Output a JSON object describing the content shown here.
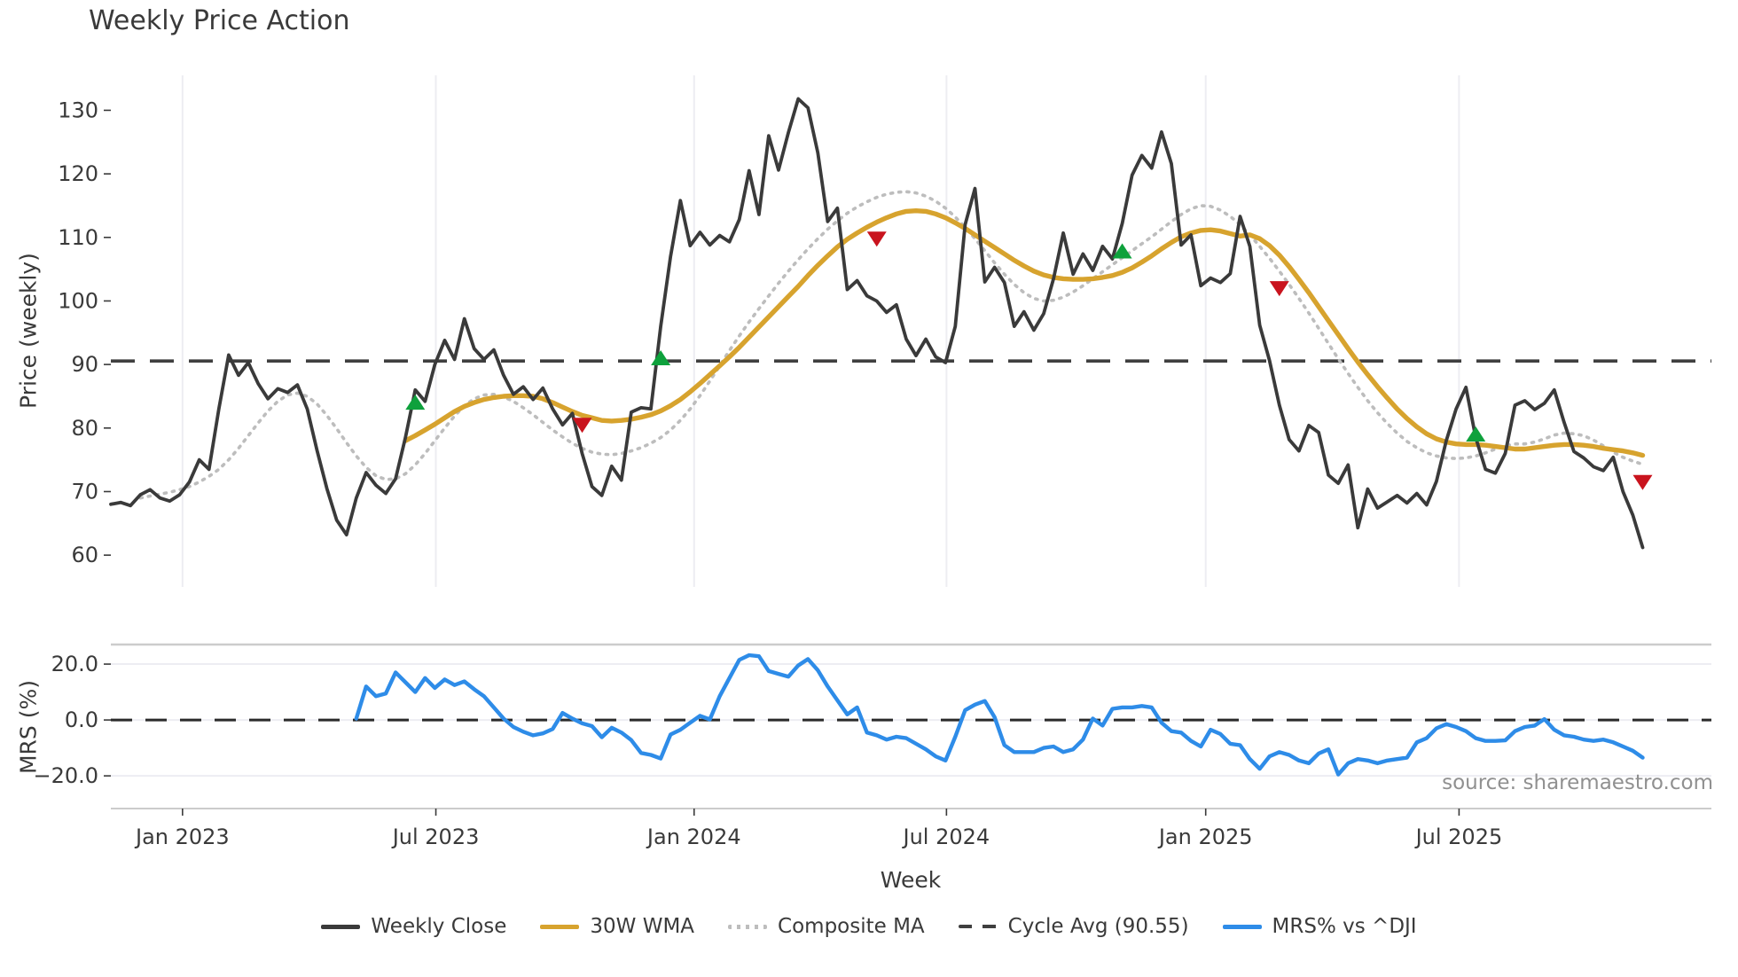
{
  "title": "Weekly Price Action",
  "source_note": "source: sharemaestro.com",
  "colors": {
    "weekly_close": "#3A3A3A",
    "wma": "#D7A32E",
    "composite": "#BDBDBD",
    "cycle_avg": "#3F3F3F",
    "mrs": "#2E8CE8",
    "buy": "#0EA13C",
    "sell": "#C9141E",
    "grid": "#EDEDF2",
    "panel_border": "#CCCCCC",
    "text": "#3A3A3A",
    "muted": "#909090"
  },
  "legend": {
    "items": [
      {
        "label": "Weekly Close",
        "color": "weekly_close",
        "style": "solid"
      },
      {
        "label": "30W WMA",
        "color": "wma",
        "style": "solid"
      },
      {
        "label": "Composite MA",
        "color": "composite",
        "style": "dotted"
      },
      {
        "label": "Cycle Avg (90.55)",
        "color": "cycle_avg",
        "style": "dashed"
      },
      {
        "label": "MRS% vs ^DJI",
        "color": "mrs",
        "style": "solid"
      }
    ]
  },
  "chart_data": [
    {
      "type": "line",
      "panel": "price",
      "title": "Weekly Price Action",
      "ylabel": "Price (weekly)",
      "ylim": [
        55,
        135.5
      ],
      "y_ticks": [
        130,
        120,
        110,
        100,
        90,
        80,
        70,
        60
      ],
      "x_range_weeks": [
        0,
        163
      ],
      "grid": "vertical-at-x-ticks",
      "cycle_avg": 90.55,
      "series": [
        {
          "name": "Weekly Close",
          "start_week": 0,
          "values": [
            68,
            68.3,
            67.8,
            69.5,
            70.3,
            69,
            68.5,
            69.5,
            71.5,
            75,
            73.5,
            83,
            91.5,
            88.3,
            90.3,
            87,
            84.6,
            86.2,
            85.6,
            86.8,
            83,
            76.5,
            70.5,
            65.5,
            63.2,
            69,
            73,
            71,
            69.7,
            72,
            78.5,
            86,
            84.2,
            90,
            93.8,
            90.8,
            97.2,
            92.5,
            90.8,
            92.3,
            88.3,
            85.3,
            86.5,
            84.5,
            86.3,
            83,
            80.5,
            82.3,
            76,
            70.8,
            69.4,
            74,
            71.8,
            82.5,
            83.2,
            83,
            96,
            107,
            115.8,
            108.7,
            110.8,
            108.8,
            110.3,
            109.3,
            112.8,
            120.5,
            113.6,
            126,
            120.6,
            126.5,
            131.8,
            130.4,
            123.3,
            112.5,
            114.6,
            101.8,
            103.2,
            100.8,
            100,
            98.2,
            99.4,
            94,
            91.4,
            94,
            91.2,
            90.3,
            96,
            112,
            117.7,
            103,
            105.3,
            102.9,
            96,
            98.3,
            95.4,
            98,
            103.5,
            110.7,
            104.2,
            107.4,
            104.8,
            108.6,
            106.6,
            112.2,
            119.8,
            122.9,
            120.9,
            126.6,
            121.6,
            108.8,
            110.4,
            102.4,
            103.6,
            102.9,
            104.3,
            113.3,
            108.6,
            96.2,
            90.6,
            83.6,
            78.2,
            76.4,
            80.4,
            79.3,
            72.6,
            71.3,
            74.2,
            64.3,
            70.4,
            67.4,
            68.4,
            69.4,
            68.2,
            69.7,
            67.9,
            71.6,
            78,
            83,
            86.4,
            78.5,
            73.5,
            72.9,
            76,
            83.6,
            84.3,
            82.9,
            83.9,
            86,
            80.9,
            76.3,
            75.3,
            73.9,
            73.3,
            75.4,
            70,
            66.3,
            61.2
          ]
        },
        {
          "name": "30W WMA",
          "start_week": 30,
          "values": [
            78,
            78.8,
            79.7,
            80.6,
            81.6,
            82.6,
            83.4,
            84,
            84.5,
            84.8,
            85,
            85.1,
            85.1,
            85,
            84.6,
            84,
            83.3,
            82.6,
            82,
            81.6,
            81.2,
            81.1,
            81.2,
            81.4,
            81.7,
            82.1,
            82.7,
            83.5,
            84.5,
            85.7,
            87,
            88.4,
            89.8,
            91.2,
            92.7,
            94.3,
            95.9,
            97.5,
            99.1,
            100.7,
            102.3,
            104,
            105.6,
            107.1,
            108.5,
            109.7,
            110.7,
            111.6,
            112.4,
            113.1,
            113.7,
            114.1,
            114.2,
            114.1,
            113.7,
            113.1,
            112.3,
            111.4,
            110.4,
            109.4,
            108.4,
            107.4,
            106.4,
            105.5,
            104.7,
            104.1,
            103.7,
            103.5,
            103.4,
            103.4,
            103.5,
            103.7,
            104,
            104.5,
            105.2,
            106.1,
            107.1,
            108.2,
            109.2,
            110.1,
            110.7,
            111.1,
            111.2,
            111,
            110.6,
            110.2,
            110.4,
            109.8,
            108.7,
            107.2,
            105.4,
            103.4,
            101.3,
            99.1,
            96.9,
            94.7,
            92.5,
            90.4,
            88.4,
            86.5,
            84.7,
            83,
            81.5,
            80.2,
            79.1,
            78.3,
            77.8,
            77.5,
            77.4,
            77.4,
            77.3,
            77.1,
            76.9,
            76.7,
            76.7,
            76.9,
            77.1,
            77.3,
            77.4,
            77.4,
            77.3,
            77.1,
            76.8,
            76.6,
            76.4,
            76.1,
            75.7
          ]
        },
        {
          "name": "Composite MA",
          "start_week": 3,
          "values": [
            69,
            69.3,
            69.6,
            69.9,
            70.3,
            70.8,
            71.5,
            72.4,
            73.5,
            75,
            76.8,
            78.8,
            80.8,
            82.7,
            84.2,
            85.2,
            85.5,
            85,
            83.8,
            82,
            79.9,
            77.7,
            75.6,
            73.8,
            72.5,
            71.9,
            72,
            72.8,
            74.2,
            76,
            78,
            80,
            81.9,
            83.5,
            84.6,
            85.2,
            85.3,
            84.9,
            84.2,
            83.2,
            82.1,
            80.9,
            79.7,
            78.6,
            77.6,
            76.8,
            76.2,
            75.9,
            75.8,
            76,
            76.4,
            76.9,
            77.6,
            78.5,
            79.7,
            81.2,
            83,
            85.1,
            87.4,
            89.8,
            92.2,
            94.5,
            96.7,
            98.8,
            100.8,
            102.8,
            104.7,
            106.5,
            108.2,
            109.8,
            111.3,
            112.6,
            113.8,
            114.8,
            115.6,
            116.3,
            116.8,
            117.1,
            117.2,
            117,
            116.5,
            115.7,
            114.6,
            113.2,
            111.6,
            109.8,
            107.9,
            106,
            104.2,
            102.6,
            101.3,
            100.4,
            100,
            100.1,
            100.6,
            101.4,
            102.4,
            103.5,
            104.6,
            105.7,
            106.8,
            107.9,
            109,
            110.1,
            111.3,
            112.5,
            113.6,
            114.5,
            115,
            114.9,
            114.3,
            113.3,
            112,
            110.4,
            108.6,
            106.7,
            104.7,
            102.6,
            100.4,
            98.1,
            95.7,
            93.3,
            90.9,
            88.6,
            86.4,
            84.3,
            82.4,
            80.7,
            79.2,
            77.9,
            76.9,
            76.1,
            75.6,
            75.3,
            75.2,
            75.3,
            75.6,
            76.1,
            76.7,
            77.2,
            77.5,
            77.5,
            77.8,
            78.3,
            78.9,
            79.2,
            79.1,
            78.8,
            78.1,
            77.2,
            76.2,
            75.4,
            74.8,
            74.3
          ]
        }
      ],
      "markers": {
        "buy": [
          [
            31,
            84
          ],
          [
            56,
            91
          ],
          [
            103,
            107.8
          ],
          [
            139,
            79
          ]
        ],
        "sell": [
          [
            48,
            80.5
          ],
          [
            78,
            109.8
          ],
          [
            119,
            102
          ],
          [
            156,
            71.5
          ]
        ]
      }
    },
    {
      "type": "line",
      "panel": "mrs",
      "ylabel": "MRS (%)",
      "xlabel": "Week",
      "ylim": [
        -31.7,
        27
      ],
      "y_ticks": [
        {
          "label": "20.0",
          "value": 20
        },
        {
          "label": "0.0",
          "value": 0
        },
        {
          "label": "−20.0",
          "value": -20
        }
      ],
      "zero_line": 0,
      "x_ticks": [
        {
          "label": "Jan 2023",
          "week": 7.3
        },
        {
          "label": "Jul 2023",
          "week": 33.1
        },
        {
          "label": "Jan 2024",
          "week": 59.4
        },
        {
          "label": "Jul 2024",
          "week": 85.1
        },
        {
          "label": "Jan 2025",
          "week": 111.5
        },
        {
          "label": "Jul 2025",
          "week": 137.3
        }
      ],
      "series": [
        {
          "name": "MRS% vs ^DJI",
          "start_week": 25,
          "values": [
            0.5,
            12,
            8.5,
            9.5,
            17,
            13.5,
            10,
            15,
            11.5,
            14.5,
            12.5,
            13.8,
            11,
            8.5,
            4.5,
            0.5,
            -2.5,
            -4.2,
            -5.5,
            -4.8,
            -3.2,
            2.5,
            0.5,
            -1.2,
            -2.2,
            -6.2,
            -2.8,
            -4.5,
            -7.2,
            -11.8,
            -12.5,
            -13.8,
            -5.2,
            -3.5,
            -1,
            1.5,
            0.2,
            8.5,
            15,
            21.5,
            23.2,
            22.8,
            17.5,
            16.5,
            15.5,
            19.5,
            21.8,
            17.8,
            12,
            7,
            2,
            4.5,
            -4.5,
            -5.5,
            -7,
            -6,
            -6.5,
            -8.5,
            -10.5,
            -13,
            -14.5,
            -6,
            3.5,
            5.5,
            6.8,
            1,
            -9,
            -11.5,
            -11.5,
            -11.5,
            -10,
            -9.5,
            -11.5,
            -10.5,
            -7,
            0.5,
            -2,
            4,
            4.5,
            4.5,
            5,
            4.5,
            -1,
            -4,
            -4.5,
            -7.5,
            -9.5,
            -3.5,
            -5,
            -8.5,
            -9,
            -14,
            -17.5,
            -13,
            -11.5,
            -12.5,
            -14.5,
            -15.5,
            -12,
            -10.5,
            -19.5,
            -15.5,
            -14,
            -14.5,
            -15.5,
            -14.5,
            -14,
            -13.5,
            -8,
            -6.5,
            -3,
            -1.5,
            -2.5,
            -4,
            -6.5,
            -7.5,
            -7.5,
            -7.3,
            -4,
            -2.5,
            -2,
            0.3,
            -3.5,
            -5.5,
            -6,
            -7,
            -7.5,
            -7,
            -8,
            -9.5,
            -11,
            -13.5
          ]
        }
      ]
    }
  ]
}
